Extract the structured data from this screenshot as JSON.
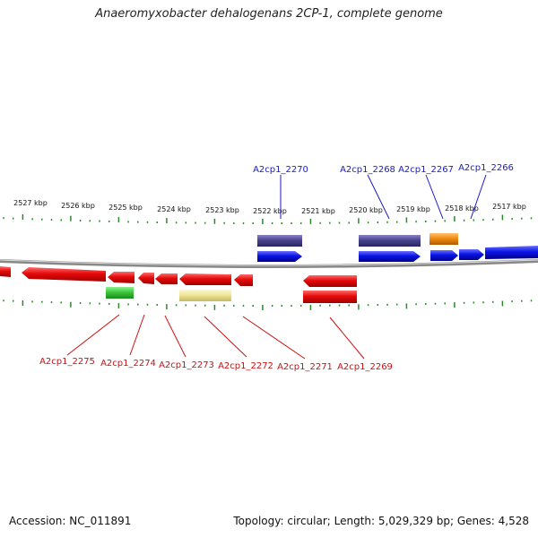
{
  "title": "Anaeromyxobacter dehalogenans 2CP-1, complete genome",
  "footer": {
    "accession": "Accession: NC_011891",
    "stats": "Topology: circular; Length: 5,029,329 bp; Genes: 4,528"
  },
  "axis": {
    "unit": "kbp",
    "ticks": [
      "2527 kbp",
      "2526 kbp",
      "2525 kbp",
      "2524 kbp",
      "2523 kbp",
      "2522 kbp",
      "2521 kbp",
      "2520 kbp",
      "2519 kbp",
      "2518 kbp",
      "2517 kbp"
    ]
  },
  "colors": {
    "forward_cds": "#0a14e6",
    "reverse_cds": "#e60a0a",
    "label_forward": "#1a1acc",
    "label_reverse": "#cc1010",
    "purple_feature": "#4a4390",
    "orange_feature": "#f08c14",
    "green_feature": "#3cc83c",
    "yellow_feature": "#f0e69b",
    "tick": "#2a8a2a",
    "backbone": "#888888"
  },
  "labels": {
    "top": [
      "A2cp1_2270",
      "A2cp1_2268",
      "A2cp1_2267",
      "A2cp1_2266"
    ],
    "bottom": [
      "A2cp1_2275",
      "A2cp1_2274",
      "A2cp1_2273",
      "A2cp1_2272",
      "A2cp1_2271",
      "A2cp1_2269"
    ]
  }
}
